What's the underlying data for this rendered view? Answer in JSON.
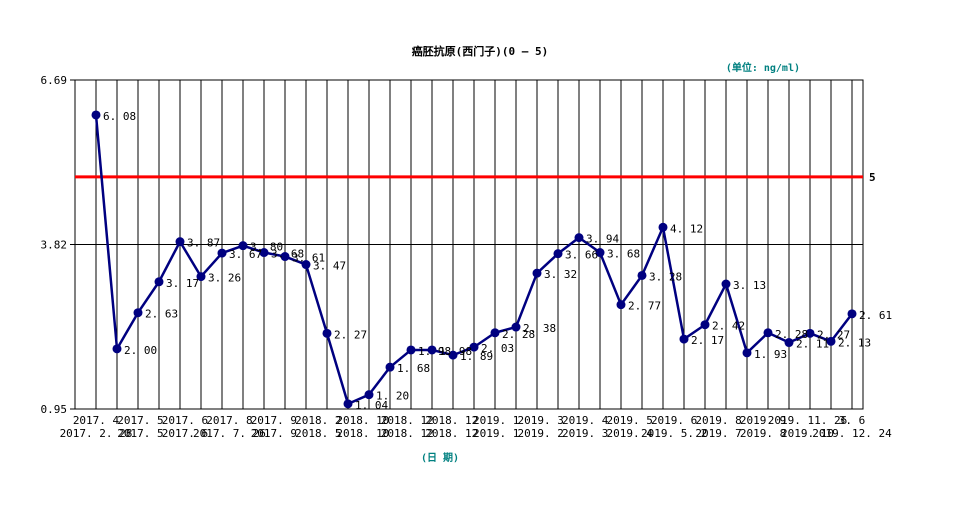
{
  "chart_data": {
    "type": "line",
    "title": "癌胚抗原(西门子)(0 — 5)",
    "unit_label": "(单位: ng/ml)",
    "xlabel": "(日 期)",
    "ylabel": "",
    "ylim": [
      0.95,
      6.69
    ],
    "yticks": [
      0.95,
      3.82,
      6.69
    ],
    "ytick_labels": [
      "0.95",
      "3.82",
      "6.69"
    ],
    "reference_line": {
      "value": 5,
      "label": "5",
      "color": "#ff0000"
    },
    "grid": true,
    "colors": {
      "line": "#000080",
      "marker": "#000080",
      "reference": "#ff0000",
      "unit_text": "#008080"
    },
    "x_labels_top": [
      "2017. 4",
      "2017. 5",
      "2017. 6",
      "2017. 8",
      "2017. 9",
      "2018. 2",
      "2018. 10",
      "2018. 12",
      "2018. 12",
      "2019. 1",
      "2019. 3",
      "2019. 4",
      "2019. 5",
      "2019. 6",
      "2019. 8",
      "2019. 9",
      "2019. 11. 26",
      "3. 6"
    ],
    "x_labels_bottom": [
      "2017. 2. 28",
      "2017. 5",
      "2017. 6",
      "2017. 7. 26",
      "2017. 9",
      "2018. 5",
      "2018. 10",
      "2018. 12",
      "2018. 12",
      "2019. 1",
      "2019. 2",
      "2019. 3",
      "2019. 4",
      "2019. 5. 2",
      "2019. 7",
      "2019. 8",
      "2019. 10",
      "2019. 12. 24"
    ],
    "values": [
      6.08,
      2.0,
      2.63,
      3.17,
      3.87,
      3.26,
      3.67,
      3.8,
      3.68,
      3.61,
      3.47,
      2.27,
      1.04,
      1.2,
      1.68,
      1.98,
      1.98,
      1.89,
      2.03,
      2.28,
      2.38,
      3.32,
      3.66,
      3.94,
      3.68,
      2.77,
      3.28,
      4.12,
      2.17,
      2.42,
      3.13,
      1.93,
      2.28,
      2.11,
      2.27,
      2.13,
      2.61
    ],
    "data_labels": [
      "6. 08",
      "2. 00",
      "2. 63",
      "3. 17",
      "3. 87",
      "3. 26",
      "3. 67",
      "3. 80",
      "3. 68",
      "3. 61",
      "3. 47",
      "2. 27",
      "1. 04",
      "1. 20",
      "1. 68",
      "1. 98",
      "1. 98",
      "1. 89",
      "2. 03",
      "2. 28",
      "2. 38",
      "3. 32",
      "3. 66",
      "3. 94",
      "3. 68",
      "2. 77",
      "3. 28",
      "4. 12",
      "2. 17",
      "2. 42",
      "3. 13",
      "1. 93",
      "2. 28",
      "2. 11",
      "2. 27",
      "2. 13",
      "2. 61"
    ]
  }
}
